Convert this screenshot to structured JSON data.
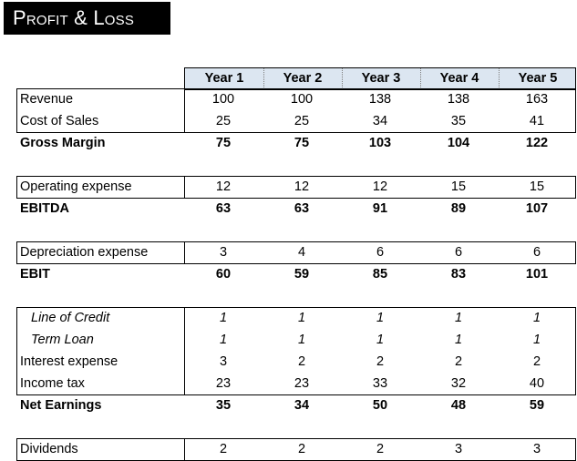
{
  "header": {
    "title": "Profit & Loss"
  },
  "table": {
    "columns": [
      "Year 1",
      "Year 2",
      "Year 3",
      "Year 4",
      "Year 5"
    ],
    "groups": [
      {
        "rows": [
          {
            "label": "Revenue",
            "values": [
              100,
              100,
              138,
              138,
              163
            ]
          },
          {
            "label": "Cost of Sales",
            "values": [
              25,
              25,
              34,
              35,
              41
            ]
          }
        ],
        "total": {
          "label": "Gross Margin",
          "values": [
            75,
            75,
            103,
            104,
            122
          ]
        }
      },
      {
        "rows": [
          {
            "label": "Operating expense",
            "values": [
              12,
              12,
              12,
              15,
              15
            ]
          }
        ],
        "total": {
          "label": "EBITDA",
          "values": [
            63,
            63,
            91,
            89,
            107
          ]
        }
      },
      {
        "rows": [
          {
            "label": "Depreciation expense",
            "values": [
              3,
              4,
              6,
              6,
              6
            ]
          }
        ],
        "total": {
          "label": "EBIT",
          "values": [
            60,
            59,
            85,
            83,
            101
          ]
        }
      },
      {
        "rows": [
          {
            "label": "Line of Credit",
            "values": [
              1,
              1,
              1,
              1,
              1
            ],
            "italic": true
          },
          {
            "label": "Term Loan",
            "values": [
              1,
              1,
              1,
              1,
              1
            ],
            "italic": true
          },
          {
            "label": "Interest expense",
            "values": [
              3,
              2,
              2,
              2,
              2
            ]
          },
          {
            "label": "Income tax",
            "values": [
              23,
              23,
              33,
              32,
              40
            ]
          }
        ],
        "total": {
          "label": "Net Earnings",
          "values": [
            35,
            34,
            50,
            48,
            59
          ]
        }
      },
      {
        "rows": [
          {
            "label": "Dividends",
            "values": [
              2,
              2,
              2,
              3,
              3
            ]
          }
        ]
      }
    ]
  }
}
